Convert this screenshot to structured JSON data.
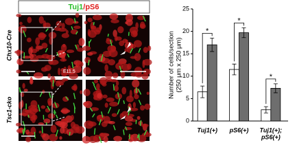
{
  "figure": {
    "header": {
      "green": "Tuj1",
      "red": "/pS6"
    },
    "row_labels": [
      "Chx10-Cre",
      "Tsc1-cko"
    ],
    "stage": "E11.5"
  },
  "chart_data": {
    "type": "bar",
    "y_label": [
      "Number of cells/section",
      "(250 μm x 250 μm)"
    ],
    "categories": [
      "Tuj1(+)",
      "pS6(+)",
      [
        "Tuj1(+);",
        "pS6(+)"
      ]
    ],
    "series": [
      {
        "color": "#ffffff",
        "values": [
          6.5,
          11.5,
          2.5
        ],
        "errors": [
          1.3,
          1.2,
          0.7
        ]
      },
      {
        "color": "#6e6e6e",
        "values": [
          17,
          19.7,
          7.3
        ],
        "errors": [
          1.5,
          1.1,
          1.0
        ]
      }
    ],
    "annotations": [
      "*",
      "*",
      "*"
    ],
    "ylim": [
      0,
      25
    ],
    "yticks": [
      0,
      5,
      10,
      15,
      20,
      25
    ]
  }
}
